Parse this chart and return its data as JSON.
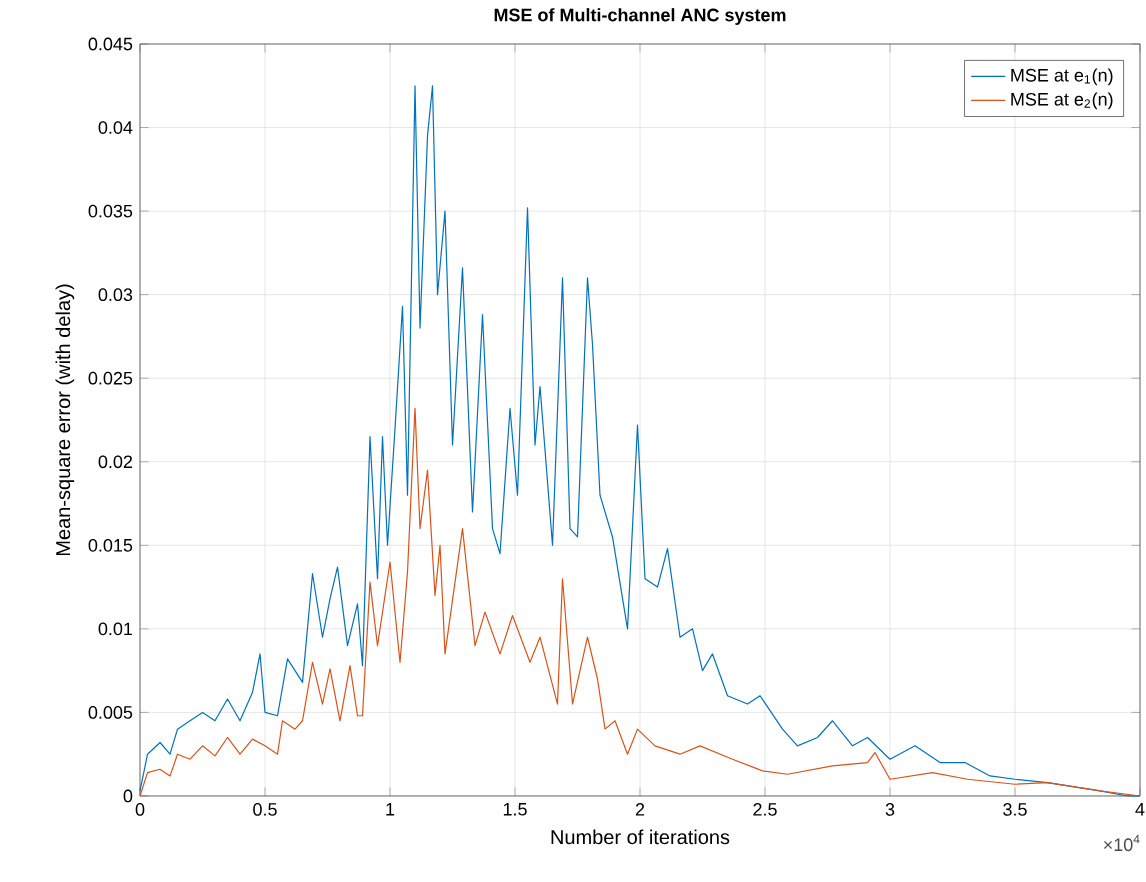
{
  "chart_data": {
    "type": "line",
    "title": "MSE of Multi-channel ANC system",
    "xlabel": "Number of iterations",
    "ylabel": "Mean-square error (with delay)",
    "annotations": [
      "×10$^{4}$"
    ],
    "xlim": [
      0,
      4
    ],
    "ylim": [
      0,
      0.045
    ],
    "xticks": [
      0,
      0.5,
      1,
      1.5,
      2,
      2.5,
      3,
      3.5,
      4
    ],
    "yticks": [
      0,
      0.005,
      0.01,
      0.015,
      0.02,
      0.025,
      0.03,
      0.035,
      0.04,
      0.045
    ],
    "grid": true,
    "legend": "top right",
    "series": [
      {
        "name": "MSE at e$_{1}$(n)",
        "color": "#0072bd",
        "x": [
          0,
          0.03,
          0.08,
          0.12,
          0.15,
          0.2,
          0.25,
          0.3,
          0.35,
          0.4,
          0.45,
          0.48,
          0.5,
          0.55,
          0.59,
          0.65,
          0.69,
          0.73,
          0.76,
          0.79,
          0.83,
          0.87,
          0.89,
          0.92,
          0.95,
          0.97,
          0.99,
          1.02,
          1.05,
          1.07,
          1.1,
          1.12,
          1.15,
          1.17,
          1.19,
          1.22,
          1.25,
          1.29,
          1.33,
          1.37,
          1.41,
          1.44,
          1.48,
          1.51,
          1.55,
          1.58,
          1.6,
          1.65,
          1.69,
          1.72,
          1.75,
          1.79,
          1.81,
          1.84,
          1.89,
          1.95,
          1.99,
          2.02,
          2.07,
          2.11,
          2.16,
          2.21,
          2.25,
          2.29,
          2.35,
          2.43,
          2.48,
          2.57,
          2.63,
          2.71,
          2.77,
          2.85,
          2.91,
          3.0,
          3.1,
          3.2,
          3.3,
          3.4,
          3.5,
          3.63,
          3.84,
          3.95,
          4.0
        ],
        "values": [
          0.0003,
          0.0025,
          0.0032,
          0.0025,
          0.004,
          0.0045,
          0.005,
          0.0045,
          0.0058,
          0.0045,
          0.0062,
          0.0085,
          0.005,
          0.0048,
          0.0082,
          0.0068,
          0.0133,
          0.0095,
          0.0118,
          0.0137,
          0.009,
          0.0115,
          0.0078,
          0.0215,
          0.013,
          0.0215,
          0.015,
          0.022,
          0.0293,
          0.018,
          0.0425,
          0.028,
          0.0395,
          0.0425,
          0.03,
          0.035,
          0.021,
          0.0316,
          0.017,
          0.0288,
          0.016,
          0.0145,
          0.0232,
          0.018,
          0.0352,
          0.021,
          0.0245,
          0.015,
          0.031,
          0.016,
          0.0155,
          0.031,
          0.027,
          0.018,
          0.0155,
          0.01,
          0.0222,
          0.013,
          0.0125,
          0.0148,
          0.0095,
          0.01,
          0.0075,
          0.0085,
          0.006,
          0.0055,
          0.006,
          0.004,
          0.003,
          0.0035,
          0.0045,
          0.003,
          0.0035,
          0.0022,
          0.003,
          0.002,
          0.002,
          0.0012,
          0.001,
          0.0008,
          0.0003,
          0.0,
          0.0
        ]
      },
      {
        "name": "MSE at e$_{2}$(n)",
        "color": "#d95319",
        "x": [
          0,
          0.03,
          0.08,
          0.12,
          0.15,
          0.2,
          0.25,
          0.3,
          0.35,
          0.4,
          0.45,
          0.5,
          0.55,
          0.57,
          0.62,
          0.65,
          0.69,
          0.73,
          0.76,
          0.8,
          0.84,
          0.87,
          0.89,
          0.92,
          0.95,
          1.0,
          1.04,
          1.07,
          1.1,
          1.12,
          1.15,
          1.18,
          1.2,
          1.22,
          1.29,
          1.34,
          1.38,
          1.44,
          1.49,
          1.56,
          1.6,
          1.67,
          1.69,
          1.73,
          1.79,
          1.83,
          1.86,
          1.9,
          1.95,
          1.99,
          2.06,
          2.16,
          2.24,
          2.37,
          2.49,
          2.59,
          2.77,
          2.91,
          2.94,
          3.0,
          3.17,
          3.31,
          3.5,
          3.63,
          3.84,
          4.0
        ],
        "values": [
          0.0,
          0.0014,
          0.0016,
          0.0012,
          0.0025,
          0.0022,
          0.003,
          0.0024,
          0.0035,
          0.0025,
          0.0034,
          0.003,
          0.0025,
          0.0045,
          0.004,
          0.0045,
          0.008,
          0.0055,
          0.0076,
          0.0045,
          0.0078,
          0.0048,
          0.0048,
          0.0128,
          0.009,
          0.014,
          0.008,
          0.0134,
          0.0232,
          0.016,
          0.0195,
          0.012,
          0.015,
          0.0085,
          0.016,
          0.009,
          0.011,
          0.0085,
          0.0108,
          0.008,
          0.0095,
          0.0055,
          0.013,
          0.0055,
          0.0095,
          0.007,
          0.004,
          0.0045,
          0.0025,
          0.004,
          0.003,
          0.0025,
          0.003,
          0.0022,
          0.0015,
          0.0013,
          0.0018,
          0.002,
          0.0026,
          0.001,
          0.0014,
          0.001,
          0.0007,
          0.0008,
          0.0003,
          0.0
        ]
      }
    ]
  }
}
